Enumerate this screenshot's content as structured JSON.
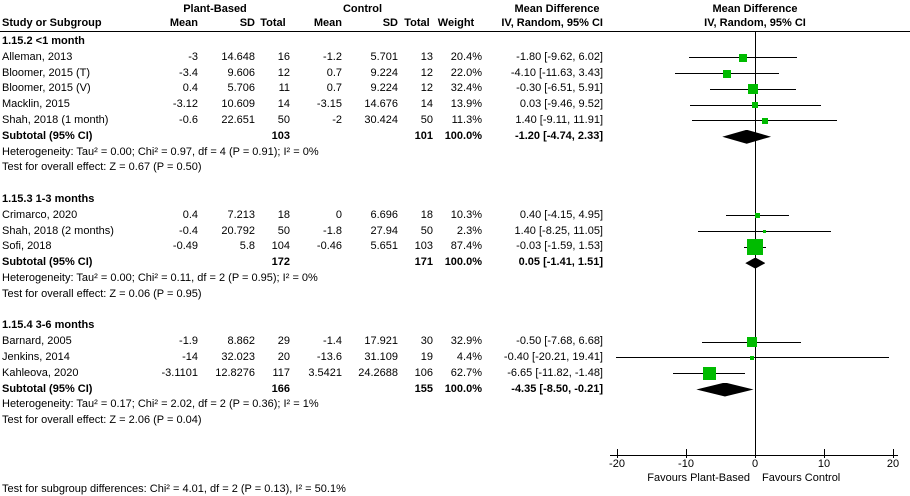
{
  "header": {
    "study": "Study or Subgroup",
    "group1": "Plant-Based",
    "group2": "Control",
    "mean": "Mean",
    "sd": "SD",
    "total": "Total",
    "weight": "Weight",
    "md": "Mean Difference",
    "method": "IV, Random, 95% CI"
  },
  "colors": {
    "square": "#00bb00",
    "diamond": "#000000",
    "line": "#000000"
  },
  "chart_data": {
    "type": "forest",
    "effect_measure": "Mean Difference",
    "model": "IV, Random, 95% CI",
    "x_axis": {
      "min": -20,
      "max": 20,
      "ticks": [
        -20,
        -10,
        0,
        10,
        20
      ],
      "label_left": "Favours Plant-Based",
      "label_right": "Favours Control"
    },
    "footer": "Test for subgroup differences: Chi² = 4.01, df = 2 (P = 0.13), I² = 50.1%",
    "groups": [
      {
        "label": "1.15.2 <1 month",
        "studies": [
          {
            "name": "Alleman, 2013",
            "mean1": "-3",
            "sd1": "14.648",
            "total1": "16",
            "mean2": "-1.2",
            "sd2": "5.701",
            "total2": "13",
            "weight": 20.4,
            "md": -1.8,
            "lo": -9.62,
            "hi": 6.02
          },
          {
            "name": "Bloomer, 2015 (T)",
            "mean1": "-3.4",
            "sd1": "9.606",
            "total1": "12",
            "mean2": "0.7",
            "sd2": "9.224",
            "total2": "12",
            "weight": 22.0,
            "md": -4.1,
            "lo": -11.63,
            "hi": 3.43
          },
          {
            "name": "Bloomer, 2015 (V)",
            "mean1": "0.4",
            "sd1": "5.706",
            "total1": "11",
            "mean2": "0.7",
            "sd2": "9.224",
            "total2": "12",
            "weight": 32.4,
            "md": -0.3,
            "lo": -6.51,
            "hi": 5.91
          },
          {
            "name": "Macklin, 2015",
            "mean1": "-3.12",
            "sd1": "10.609",
            "total1": "14",
            "mean2": "-3.15",
            "sd2": "14.676",
            "total2": "14",
            "weight": 13.9,
            "md": 0.03,
            "lo": -9.46,
            "hi": 9.52
          },
          {
            "name": "Shah, 2018 (1 month)",
            "mean1": "-0.6",
            "sd1": "22.651",
            "total1": "50",
            "mean2": "-2",
            "sd2": "30.424",
            "total2": "50",
            "weight": 11.3,
            "md": 1.4,
            "lo": -9.11,
            "hi": 11.91
          }
        ],
        "subtotal": {
          "label": "Subtotal (95% CI)",
          "total1": "103",
          "total2": "101",
          "weight": 100.0,
          "md": -1.2,
          "lo": -4.74,
          "hi": 2.33
        },
        "heterogeneity": "Heterogeneity: Tau² = 0.00; Chi² = 0.97, df = 4 (P = 0.91); I² = 0%",
        "overall_effect": "Test for overall effect: Z = 0.67 (P = 0.50)"
      },
      {
        "label": "1.15.3 1-3 months",
        "studies": [
          {
            "name": "Crimarco, 2020",
            "mean1": "0.4",
            "sd1": "7.213",
            "total1": "18",
            "mean2": "0",
            "sd2": "6.696",
            "total2": "18",
            "weight": 10.3,
            "md": 0.4,
            "lo": -4.15,
            "hi": 4.95
          },
          {
            "name": "Shah, 2018 (2 months)",
            "mean1": "-0.4",
            "sd1": "20.792",
            "total1": "50",
            "mean2": "-1.8",
            "sd2": "27.94",
            "total2": "50",
            "weight": 2.3,
            "md": 1.4,
            "lo": -8.25,
            "hi": 11.05
          },
          {
            "name": "Sofi, 2018",
            "mean1": "-0.49",
            "sd1": "5.8",
            "total1": "104",
            "mean2": "-0.46",
            "sd2": "5.651",
            "total2": "103",
            "weight": 87.4,
            "md": -0.03,
            "lo": -1.59,
            "hi": 1.53
          }
        ],
        "subtotal": {
          "label": "Subtotal (95% CI)",
          "total1": "172",
          "total2": "171",
          "weight": 100.0,
          "md": 0.05,
          "lo": -1.41,
          "hi": 1.51
        },
        "heterogeneity": "Heterogeneity: Tau² = 0.00; Chi² = 0.11, df = 2 (P = 0.95); I² = 0%",
        "overall_effect": "Test for overall effect: Z = 0.06 (P = 0.95)"
      },
      {
        "label": "1.15.4 3-6 months",
        "studies": [
          {
            "name": "Barnard, 2005",
            "mean1": "-1.9",
            "sd1": "8.862",
            "total1": "29",
            "mean2": "-1.4",
            "sd2": "17.921",
            "total2": "30",
            "weight": 32.9,
            "md": -0.5,
            "lo": -7.68,
            "hi": 6.68
          },
          {
            "name": "Jenkins, 2014",
            "mean1": "-14",
            "sd1": "32.023",
            "total1": "20",
            "mean2": "-13.6",
            "sd2": "31.109",
            "total2": "19",
            "weight": 4.4,
            "md": -0.4,
            "lo": -20.21,
            "hi": 19.41
          },
          {
            "name": "Kahleova, 2020",
            "mean1": "-3.1101",
            "sd1": "12.8276",
            "total1": "117",
            "mean2": "3.5421",
            "sd2": "24.2688",
            "total2": "106",
            "weight": 62.7,
            "md": -6.65,
            "lo": -11.82,
            "hi": -1.48
          }
        ],
        "subtotal": {
          "label": "Subtotal (95% CI)",
          "total1": "166",
          "total2": "155",
          "weight": 100.0,
          "md": -4.35,
          "lo": -8.5,
          "hi": -0.21
        },
        "heterogeneity": "Heterogeneity: Tau² = 0.17; Chi² = 2.02, df = 2 (P = 0.36); I² = 1%",
        "overall_effect": "Test for overall effect: Z = 2.06 (P = 0.04)"
      }
    ]
  }
}
